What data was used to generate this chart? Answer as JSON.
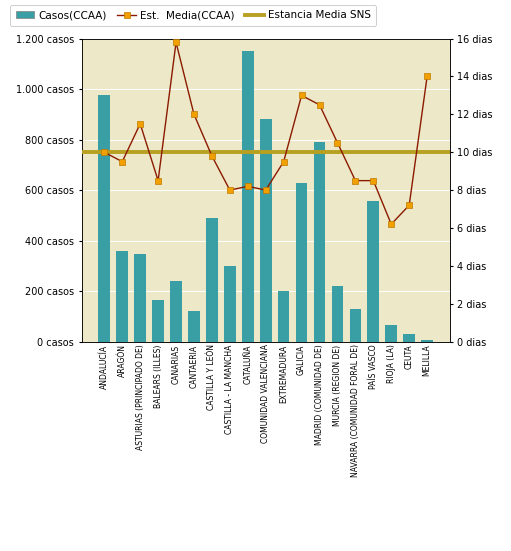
{
  "categories": [
    "ANDALUCÍA",
    "ARAGÓN",
    "ASTURIAS (PRINCIPADO DE)",
    "BALEARS (ILLES)",
    "CANARIAS",
    "CANTAERIA",
    "CASTILLA Y LEÓN",
    "CASTILLA - LA MANCHA",
    "CATALUÑA",
    "COMUNIDAD VALENCIANA",
    "EXTREMADURA",
    "GALICIA",
    "MADRID (COMUNIDAD DE)",
    "MURCIA (REGION DE)",
    "NAVARRA (COMUNIDAD FORAL DE)",
    "PAÍS VASCO",
    "RIOJA (LA)",
    "CEUTA",
    "MELILLA"
  ],
  "casos": [
    975,
    360,
    345,
    165,
    240,
    120,
    490,
    300,
    1150,
    880,
    200,
    630,
    790,
    220,
    130,
    555,
    65,
    30,
    5
  ],
  "estancia_media": [
    10.0,
    9.5,
    11.5,
    8.5,
    15.8,
    12.0,
    9.8,
    8.0,
    8.2,
    8.0,
    9.5,
    13.0,
    12.5,
    10.5,
    8.5,
    8.5,
    6.2,
    7.2,
    14.0
  ],
  "estancia_media_sns": 10.0,
  "bar_color": "#3a9ea5",
  "line_color": "#8b1a00",
  "line_marker_facecolor": "#f0a000",
  "line_marker_edgecolor": "#c07800",
  "sns_line_color": "#b8a020",
  "background_color": "#ede8c8",
  "ylim_left": [
    0,
    1200
  ],
  "ylim_right": [
    0,
    16
  ],
  "yticks_left": [
    0,
    200,
    400,
    600,
    800,
    1000,
    1200
  ],
  "ytick_labels_left": [
    "0 casos",
    "200 casos",
    "400 casos",
    "600 casos",
    "800 casos",
    "1.000 casos",
    "1.200 casos"
  ],
  "yticks_right": [
    0,
    2,
    4,
    6,
    8,
    10,
    12,
    14,
    16
  ],
  "ytick_labels_right": [
    "0 dias",
    "2 dias",
    "4 dias",
    "6 dias",
    "8 dias",
    "10 dias",
    "12 dias",
    "14 dias",
    "16 dias"
  ],
  "legend_casos": "Casos(CCAA)",
  "legend_estancia": "Est.  Media(CCAA)",
  "legend_sns": "Estancia Media SNS"
}
